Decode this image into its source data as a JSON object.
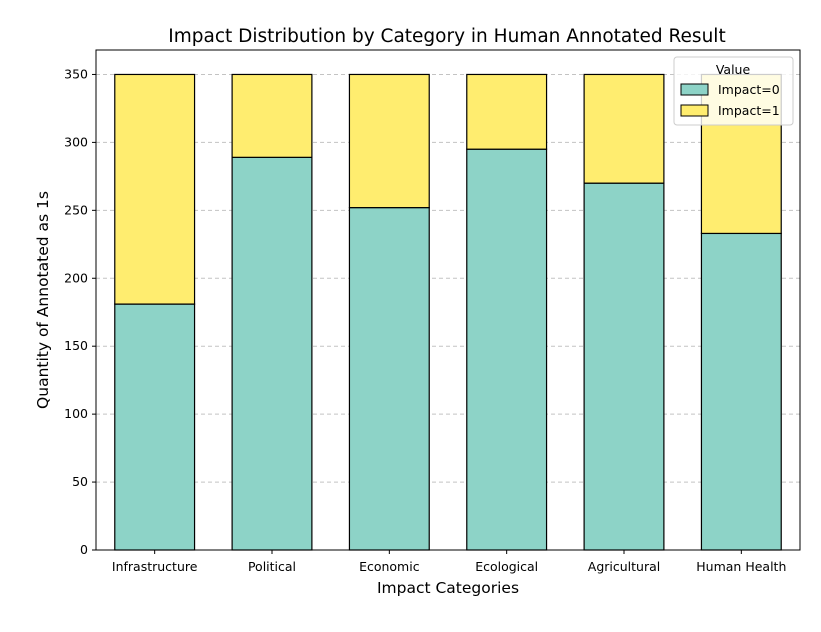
{
  "chart_data": {
    "type": "bar",
    "stacked": true,
    "title": "Impact Distribution by Category in Human Annotated Result",
    "xlabel": "Impact Categories",
    "ylabel": "Quantity of Annotated as 1s",
    "categories": [
      "Infrastructure",
      "Political",
      "Economic",
      "Ecological",
      "Agricultural",
      "Human Health"
    ],
    "series": [
      {
        "name": "Impact=0",
        "color": "#8dd3c7",
        "values": [
          181,
          289,
          252,
          295,
          270,
          233
        ]
      },
      {
        "name": "Impact=1",
        "color": "#ffed6f",
        "values": [
          169,
          61,
          98,
          55,
          80,
          117
        ]
      }
    ],
    "ylim": [
      0,
      368
    ],
    "yticks": [
      0,
      50,
      100,
      150,
      200,
      250,
      300,
      350
    ],
    "grid": "y-dashed",
    "legend": {
      "title": "Value",
      "placement": "top-right"
    }
  }
}
